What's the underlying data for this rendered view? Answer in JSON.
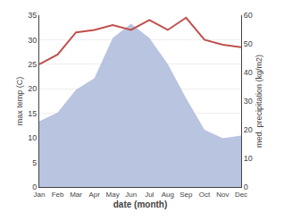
{
  "chart_data": {
    "type": "line",
    "categories": [
      "Jan",
      "Feb",
      "Mar",
      "Apr",
      "May",
      "Jun",
      "Jul",
      "Aug",
      "Sep",
      "Oct",
      "Nov",
      "Dec"
    ],
    "series": [
      {
        "type": "area",
        "axis": "y2",
        "color": "#b8c4e0",
        "values": [
          23,
          26,
          34,
          38,
          52,
          57,
          52,
          43,
          31,
          20,
          17,
          18
        ]
      },
      {
        "type": "line",
        "color": "#c0504d",
        "values": [
          25,
          27,
          31.5,
          32,
          33,
          32,
          34,
          32,
          34.5,
          30,
          29,
          28.5
        ]
      }
    ],
    "x_label": "date (month)",
    "y_label": "max temp (C)",
    "y2_label": "med. precipitation (kg/m2)",
    "ylim": [
      0,
      35
    ],
    "yticks": [
      0,
      5,
      10,
      15,
      20,
      25,
      30,
      35
    ],
    "y2lim": [
      0,
      60
    ],
    "y2ticks": [
      0,
      10,
      20,
      30,
      40,
      50,
      60
    ],
    "grid": true
  }
}
